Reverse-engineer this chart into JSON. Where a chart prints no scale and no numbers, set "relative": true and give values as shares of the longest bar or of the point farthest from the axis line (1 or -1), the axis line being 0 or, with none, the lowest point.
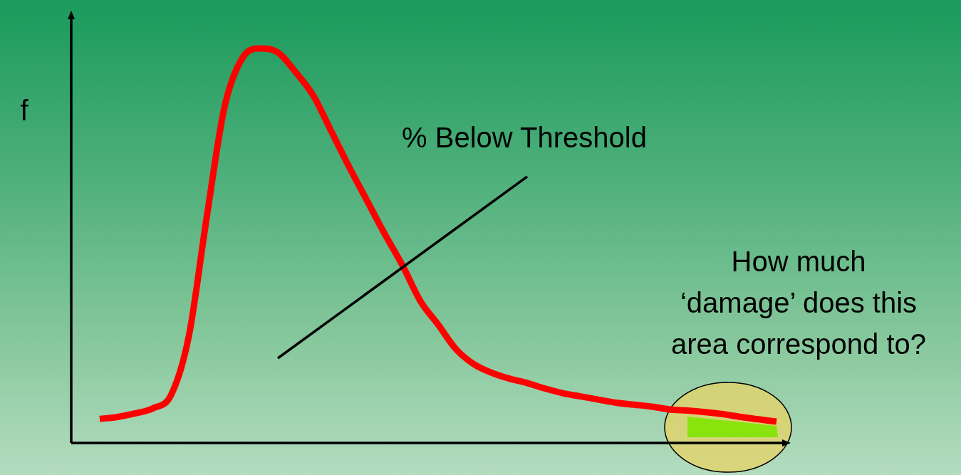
{
  "chart_data": {
    "type": "line",
    "relative": true,
    "ylabel": "f",
    "legend": false,
    "marker": "none",
    "line_style": "solid",
    "categories": [
      null,
      null,
      null,
      null,
      null,
      null,
      null,
      null,
      null,
      null,
      null,
      null,
      null,
      null,
      null,
      null,
      null,
      null,
      null,
      null,
      null,
      null,
      null,
      null,
      null,
      null,
      null,
      null,
      null,
      null,
      null,
      null,
      null,
      null,
      null,
      null,
      null,
      null,
      null
    ],
    "series": [
      {
        "color": "#ff0000",
        "values": [
          0.061,
          0.066,
          0.075,
          0.088,
          0.121,
          0.27,
          0.57,
          0.85,
          0.975,
          1,
          0.99,
          0.94,
          0.88,
          0.79,
          0.7,
          0.615,
          0.53,
          0.45,
          0.36,
          0.3,
          0.238,
          0.2,
          0.178,
          0.163,
          0.152,
          0.138,
          0.126,
          0.118,
          0.11,
          0.102,
          0.097,
          0.092,
          0.085,
          0.082,
          0.078,
          0.073,
          0.066,
          0.06,
          0.054
        ]
      }
    ],
    "annotations": [
      "% Below Threshold",
      "How much\n‘damage’ does this\narea correspond to?"
    ]
  }
}
